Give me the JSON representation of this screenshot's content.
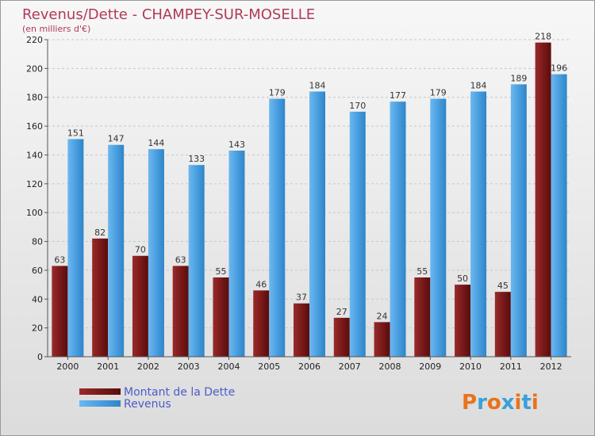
{
  "chart_data": {
    "type": "bar",
    "title": "Revenus/Dette - CHAMPEY-SUR-MOSELLE",
    "subtitle": "(en milliers d'€)",
    "categories": [
      "2000",
      "2001",
      "2002",
      "2003",
      "2004",
      "2005",
      "2006",
      "2007",
      "2008",
      "2009",
      "2010",
      "2011",
      "2012"
    ],
    "series": [
      {
        "name": "Montant de la Dette",
        "color": "#7a1a1a",
        "values": [
          63,
          82,
          70,
          63,
          55,
          46,
          37,
          27,
          24,
          55,
          50,
          45,
          218
        ]
      },
      {
        "name": "Revenus",
        "color": "#4a9fe0",
        "values": [
          151,
          147,
          144,
          133,
          143,
          179,
          184,
          170,
          177,
          179,
          184,
          189,
          196
        ]
      }
    ],
    "ylim": [
      0,
      220
    ],
    "yticks": [
      0,
      20,
      40,
      60,
      80,
      100,
      120,
      140,
      160,
      180,
      200,
      220
    ],
    "grid": true,
    "legend": "bottom-left"
  },
  "logo": {
    "text": "Proxiti",
    "letter_colors": [
      "#e8731c",
      "#3aa0d8",
      "#e8731c",
      "#3aa0d8",
      "#e8731c",
      "#3aa0d8",
      "#e8731c"
    ]
  }
}
